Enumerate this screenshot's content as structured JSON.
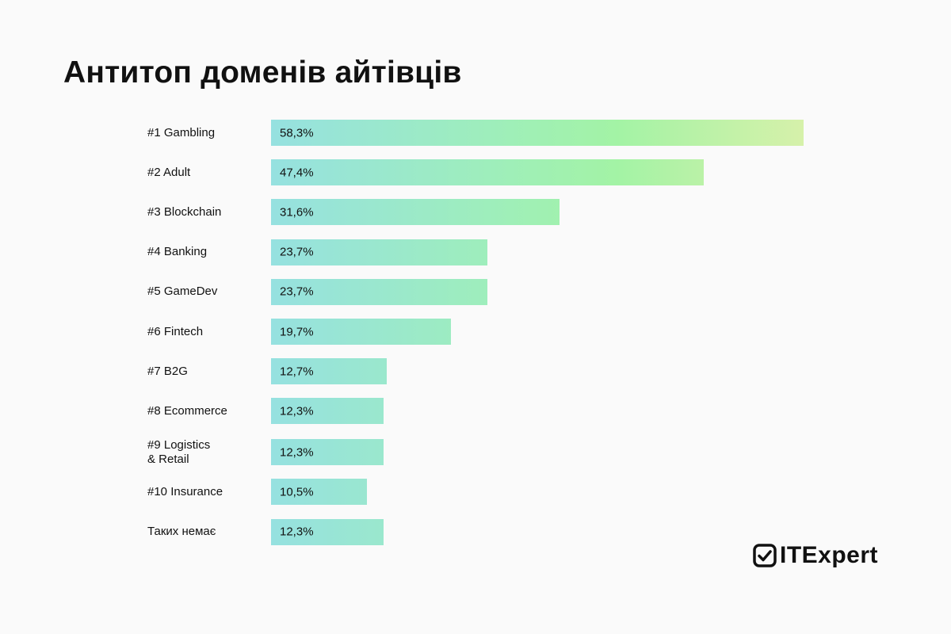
{
  "chart_data": {
    "type": "bar",
    "orientation": "horizontal",
    "title": "Антитоп доменів айтівців",
    "categories": [
      "#1 Gambling",
      "#2 Adult",
      "#3 Blockchain",
      "#4 Banking",
      "#5 GameDev",
      "#6 Fintech",
      "#7 B2G",
      "#8 Ecommerce",
      "#9 Logistics\n& Retail",
      "#10 Insurance",
      "Таких немає"
    ],
    "values": [
      58.3,
      47.4,
      31.6,
      23.7,
      23.7,
      19.7,
      12.7,
      12.3,
      12.3,
      10.5,
      12.3
    ],
    "value_labels": [
      "58,3%",
      "47,4%",
      "31,6%",
      "23,7%",
      "23,7%",
      "19,7%",
      "12,7%",
      "12,3%",
      "12,3%",
      "10,5%",
      "12,3%"
    ],
    "unit": "%",
    "grid": false,
    "colors": {
      "gradient_start": "#96e1e0",
      "gradient_mid": "#a3f3a5",
      "gradient_end": "#d6f1aa"
    }
  },
  "logo": {
    "text": "ITExpert",
    "icon": "checkbox-check-icon"
  }
}
